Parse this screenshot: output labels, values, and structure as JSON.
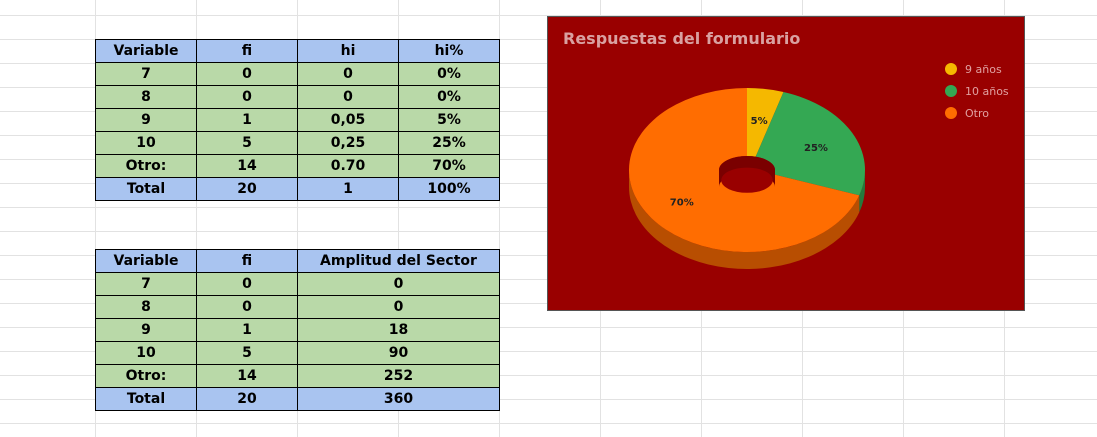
{
  "table1": {
    "header": [
      "Variable",
      "fi",
      "hi",
      "hi%"
    ],
    "rows": [
      [
        "7",
        "0",
        "0",
        "0%"
      ],
      [
        "8",
        "0",
        "0",
        "0%"
      ],
      [
        "9",
        "1",
        "0,05",
        "5%"
      ],
      [
        "10",
        "5",
        "0,25",
        "25%"
      ],
      [
        "Otro:",
        "14",
        "0.70",
        "70%"
      ]
    ],
    "total": [
      "Total",
      "20",
      "1",
      "100%"
    ]
  },
  "table2": {
    "header": [
      "Variable",
      "fi",
      "Amplitud del Sector"
    ],
    "rows": [
      [
        "7",
        "0",
        "0"
      ],
      [
        "8",
        "0",
        "0"
      ],
      [
        "9",
        "1",
        "18"
      ],
      [
        "10",
        "5",
        "90"
      ],
      [
        "Otro:",
        "14",
        "252"
      ]
    ],
    "total": [
      "Total",
      "20",
      "360"
    ]
  },
  "chart_data": {
    "type": "pie",
    "style": "3d-donut",
    "title": "Respuestas del formulario",
    "categories": [
      "9 años",
      "10 años",
      "Otro"
    ],
    "values": [
      5,
      25,
      70
    ],
    "data_labels": [
      "5%",
      "25%",
      "70%"
    ],
    "colors": [
      "#f5b800",
      "#34a853",
      "#ff6d01"
    ],
    "background": "#990000",
    "legend": "right"
  }
}
